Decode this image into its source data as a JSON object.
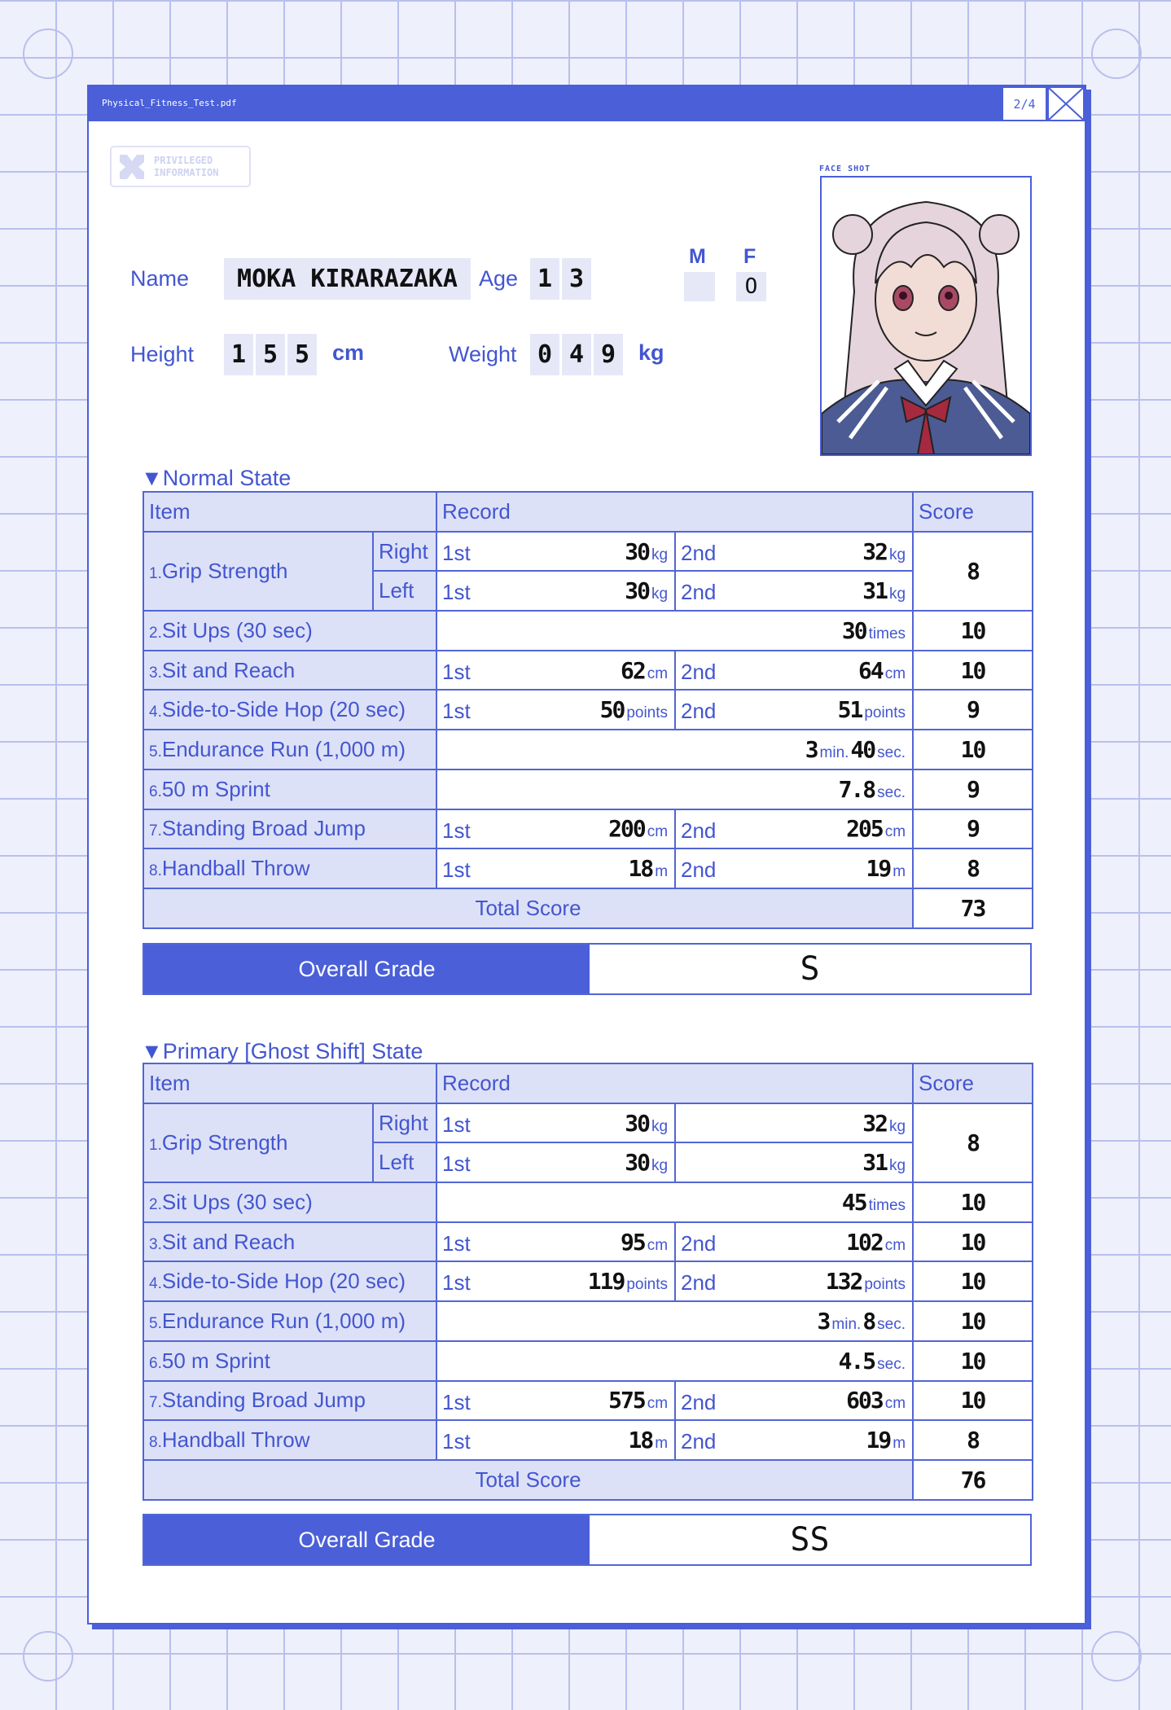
{
  "window": {
    "title": "Physical_Fitness_Test.pdf",
    "page_indicator": "2/4",
    "accent": "#4a5fd8"
  },
  "badge": {
    "text": "PRIVILEGED\nINFORMATION"
  },
  "profile": {
    "name_label": "Name",
    "name": "MOKA KIRARAZAKA",
    "age_label": "Age",
    "age_digits": [
      "1",
      "3"
    ],
    "sex_m_label": "M",
    "sex_f_label": "F",
    "sex_m_mark": "",
    "sex_f_mark": "O",
    "height_label": "Height",
    "height_digits": [
      "1",
      "5",
      "5"
    ],
    "height_unit": "cm",
    "weight_label": "Weight",
    "weight_digits": [
      "0",
      "4",
      "9"
    ],
    "weight_unit": "kg",
    "face_shot_label": "FACE SHOT"
  },
  "sections": [
    {
      "title": "▼Normal State",
      "headers": {
        "item": "Item",
        "record": "Record",
        "score": "Score"
      },
      "rows": [
        {
          "num": "1.",
          "item": "Grip Strength",
          "score": "8",
          "sides": [
            {
              "side": "Right",
              "t1": {
                "label": "1st",
                "value": "30",
                "unit": "kg"
              },
              "t2": {
                "label": "2nd",
                "value": "32",
                "unit": "kg"
              }
            },
            {
              "side": "Left",
              "t1": {
                "label": "1st",
                "value": "30",
                "unit": "kg"
              },
              "t2": {
                "label": "2nd",
                "value": "31",
                "unit": "kg"
              }
            }
          ]
        },
        {
          "num": "2.",
          "item": "Sit Ups (30 sec)",
          "score": "10",
          "record": [
            {
              "value": "30",
              "unit": "times"
            }
          ]
        },
        {
          "num": "3.",
          "item": "Sit and Reach",
          "score": "10",
          "t1": {
            "label": "1st",
            "value": "62",
            "unit": "cm"
          },
          "t2": {
            "label": "2nd",
            "value": "64",
            "unit": "cm"
          }
        },
        {
          "num": "4.",
          "item": "Side-to-Side Hop (20 sec)",
          "score": "9",
          "t1": {
            "label": "1st",
            "value": "50",
            "unit": "points"
          },
          "t2": {
            "label": "2nd",
            "value": "51",
            "unit": "points"
          }
        },
        {
          "num": "5.",
          "item": "Endurance Run (1,000 m)",
          "score": "10",
          "record": [
            {
              "value": "3",
              "unit": "min."
            },
            {
              "value": "40",
              "unit": "sec."
            }
          ]
        },
        {
          "num": "6.",
          "item": "50 m Sprint",
          "score": "9",
          "record": [
            {
              "value": "7.8",
              "unit": "sec."
            }
          ]
        },
        {
          "num": "7.",
          "item": "Standing Broad Jump",
          "score": "9",
          "t1": {
            "label": "1st",
            "value": "200",
            "unit": "cm"
          },
          "t2": {
            "label": "2nd",
            "value": "205",
            "unit": "cm"
          }
        },
        {
          "num": "8.",
          "item": "Handball Throw",
          "score": "8",
          "t1": {
            "label": "1st",
            "value": "18",
            "unit": "m"
          },
          "t2": {
            "label": "2nd",
            "value": "19",
            "unit": "m"
          }
        }
      ],
      "total_label": "Total Score",
      "total": "73",
      "grade_label": "Overall Grade",
      "grade": "S"
    },
    {
      "title": "▼Primary [Ghost Shift] State",
      "headers": {
        "item": "Item",
        "record": "Record",
        "score": "Score"
      },
      "rows": [
        {
          "num": "1.",
          "item": "Grip Strength",
          "score": "8",
          "sides": [
            {
              "side": "Right",
              "t1": {
                "label": "1st",
                "value": "30",
                "unit": "kg"
              },
              "t2": {
                "label": "",
                "value": "32",
                "unit": "kg"
              }
            },
            {
              "side": "Left",
              "t1": {
                "label": "1st",
                "value": "30",
                "unit": "kg"
              },
              "t2": {
                "label": "",
                "value": "31",
                "unit": "kg"
              }
            }
          ]
        },
        {
          "num": "2.",
          "item": "Sit Ups (30 sec)",
          "score": "10",
          "record": [
            {
              "value": "45",
              "unit": "times"
            }
          ]
        },
        {
          "num": "3.",
          "item": "Sit and Reach",
          "score": "10",
          "t1": {
            "label": "1st",
            "value": "95",
            "unit": "cm"
          },
          "t2": {
            "label": "2nd",
            "value": "102",
            "unit": "cm"
          }
        },
        {
          "num": "4.",
          "item": "Side-to-Side Hop (20 sec)",
          "score": "10",
          "t1": {
            "label": "1st",
            "value": "119",
            "unit": "points"
          },
          "t2": {
            "label": "2nd",
            "value": "132",
            "unit": "points"
          }
        },
        {
          "num": "5.",
          "item": "Endurance Run (1,000 m)",
          "score": "10",
          "record": [
            {
              "value": "3",
              "unit": "min."
            },
            {
              "value": "8",
              "unit": "sec."
            }
          ]
        },
        {
          "num": "6.",
          "item": "50 m Sprint",
          "score": "10",
          "record": [
            {
              "value": "4.5",
              "unit": "sec."
            }
          ]
        },
        {
          "num": "7.",
          "item": "Standing Broad Jump",
          "score": "10",
          "t1": {
            "label": "1st",
            "value": "575",
            "unit": "cm"
          },
          "t2": {
            "label": "2nd",
            "value": "603",
            "unit": "cm"
          }
        },
        {
          "num": "8.",
          "item": "Handball Throw",
          "score": "8",
          "t1": {
            "label": "1st",
            "value": "18",
            "unit": "m"
          },
          "t2": {
            "label": "2nd",
            "value": "19",
            "unit": "m"
          }
        }
      ],
      "total_label": "Total Score",
      "total": "76",
      "grade_label": "Overall Grade",
      "grade": "SS"
    }
  ]
}
